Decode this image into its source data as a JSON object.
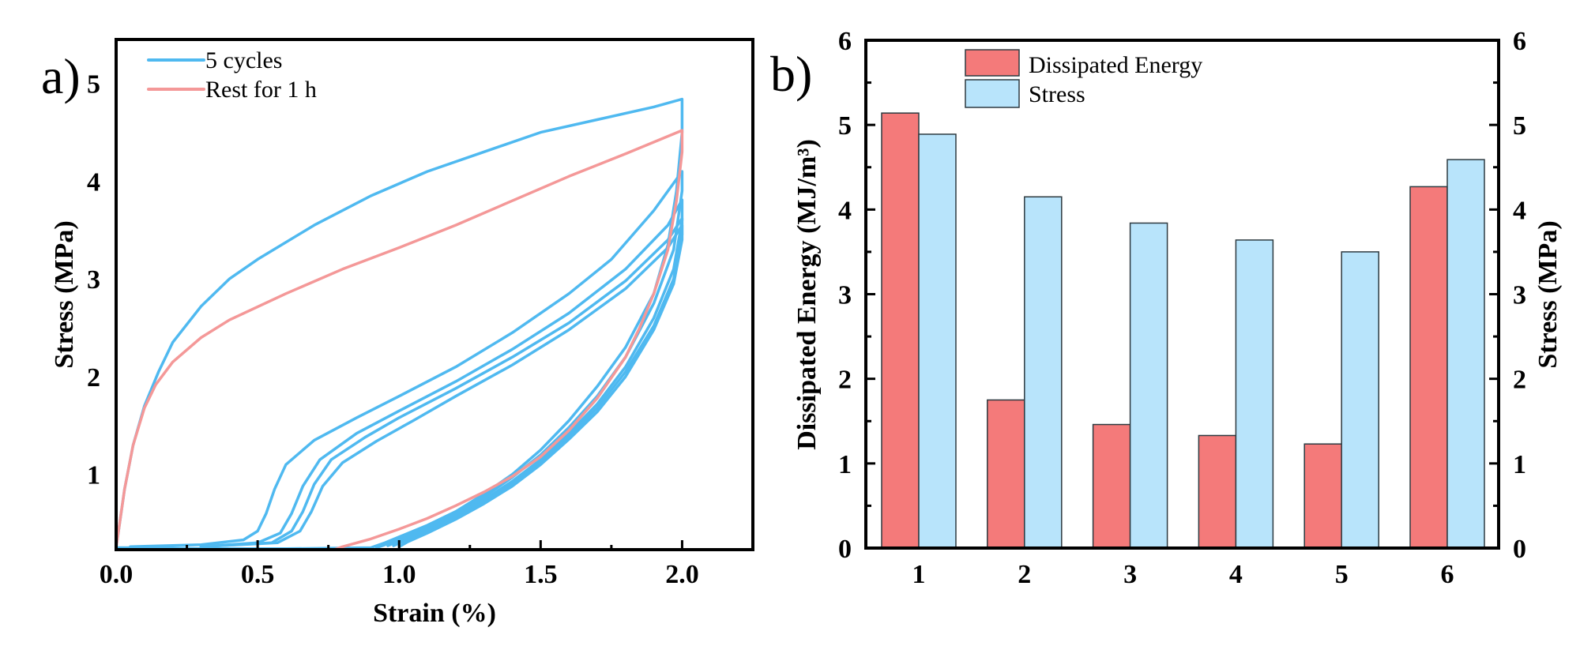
{
  "panels": {
    "a": {
      "label": "a)"
    },
    "b": {
      "label": "b)"
    }
  },
  "colors": {
    "cycles_line": "#4fb9f0",
    "rest_line": "#f49898",
    "energy_bar": "#f47a7a",
    "stress_bar": "#b8e4fb",
    "bar_edge": "#2d3a40",
    "axis": "#000000"
  },
  "chart_data": [
    {
      "id": "a",
      "type": "line",
      "title": "",
      "xlabel": "Strain (%)",
      "ylabel": "Stress (MPa)",
      "xlim": [
        0,
        2.25
      ],
      "ylim": [
        0.23,
        5.45
      ],
      "xticks": [
        "0.0",
        "0.5",
        "1.0",
        "1.5",
        "2.0"
      ],
      "xtick_values": [
        0,
        0.5,
        1.0,
        1.5,
        2.0
      ],
      "xminor_values": [
        0.25,
        0.75,
        1.25,
        1.75
      ],
      "yticks": [
        "1",
        "2",
        "3",
        "4",
        "5"
      ],
      "ytick_values": [
        1,
        2,
        3,
        4,
        5
      ],
      "grid": false,
      "legend_position": "top-left",
      "legend": [
        "5 cycles",
        "Rest for 1 h"
      ],
      "series": [
        {
          "name": "5 cycles",
          "group": "cycles",
          "cycle": 1,
          "x": [
            0,
            0.03,
            0.06,
            0.1,
            0.15,
            0.2,
            0.3,
            0.4,
            0.5,
            0.7,
            0.9,
            1.1,
            1.3,
            1.5,
            1.7,
            1.9,
            2.0,
            2.0,
            1.98,
            1.95,
            1.9,
            1.8,
            1.7,
            1.6,
            1.5,
            1.4,
            1.3,
            1.2,
            1.1,
            1.0,
            0.95,
            0.9,
            0.6,
            0.3,
            0.05,
            0
          ],
          "y": [
            0.25,
            0.85,
            1.3,
            1.7,
            2.05,
            2.35,
            2.72,
            3.0,
            3.2,
            3.55,
            3.85,
            4.1,
            4.3,
            4.5,
            4.63,
            4.76,
            4.84,
            4.5,
            3.9,
            3.35,
            2.85,
            2.3,
            1.9,
            1.55,
            1.25,
            1.0,
            0.8,
            0.62,
            0.48,
            0.36,
            0.3,
            0.25,
            0.24,
            0.24,
            0.25,
            0.25
          ]
        },
        {
          "name": "5 cycles",
          "group": "cycles",
          "cycle": 2,
          "x": [
            0.05,
            0.3,
            0.45,
            0.5,
            0.53,
            0.56,
            0.6,
            0.7,
            0.85,
            1.0,
            1.2,
            1.4,
            1.6,
            1.75,
            1.9,
            2.0,
            2.0,
            1.97,
            1.9,
            1.8,
            1.7,
            1.6,
            1.5,
            1.4,
            1.3,
            1.2,
            1.1,
            1.0,
            0.95,
            0.92
          ],
          "y": [
            0.26,
            0.28,
            0.33,
            0.42,
            0.6,
            0.85,
            1.1,
            1.35,
            1.58,
            1.8,
            2.1,
            2.45,
            2.85,
            3.2,
            3.7,
            4.1,
            3.9,
            3.3,
            2.75,
            2.2,
            1.8,
            1.48,
            1.2,
            0.97,
            0.77,
            0.6,
            0.46,
            0.34,
            0.28,
            0.25
          ]
        },
        {
          "name": "5 cycles",
          "group": "cycles",
          "cycle": 3,
          "x": [
            0.3,
            0.5,
            0.58,
            0.62,
            0.66,
            0.72,
            0.85,
            1.0,
            1.2,
            1.4,
            1.6,
            1.8,
            1.95,
            2.0,
            2.0,
            1.97,
            1.9,
            1.8,
            1.7,
            1.6,
            1.5,
            1.4,
            1.3,
            1.2,
            1.1,
            1.0,
            0.96
          ],
          "y": [
            0.26,
            0.3,
            0.4,
            0.6,
            0.88,
            1.15,
            1.42,
            1.65,
            1.95,
            2.28,
            2.65,
            3.1,
            3.55,
            3.81,
            3.6,
            3.1,
            2.6,
            2.1,
            1.72,
            1.42,
            1.15,
            0.93,
            0.74,
            0.58,
            0.44,
            0.32,
            0.27
          ]
        },
        {
          "name": "5 cycles",
          "group": "cycles",
          "cycle": 4,
          "x": [
            0.3,
            0.55,
            0.62,
            0.66,
            0.7,
            0.76,
            0.88,
            1.0,
            1.2,
            1.4,
            1.6,
            1.8,
            1.95,
            2.0,
            2.0,
            1.97,
            1.9,
            1.8,
            1.7,
            1.6,
            1.5,
            1.4,
            1.3,
            1.2,
            1.1,
            1.02,
            0.98
          ],
          "y": [
            0.26,
            0.3,
            0.42,
            0.62,
            0.9,
            1.15,
            1.38,
            1.58,
            1.88,
            2.2,
            2.55,
            2.98,
            3.4,
            3.62,
            3.45,
            3.0,
            2.52,
            2.05,
            1.68,
            1.39,
            1.12,
            0.9,
            0.72,
            0.56,
            0.42,
            0.32,
            0.27
          ]
        },
        {
          "name": "5 cycles",
          "group": "cycles",
          "cycle": 5,
          "x": [
            0.3,
            0.57,
            0.65,
            0.69,
            0.73,
            0.8,
            0.92,
            1.05,
            1.2,
            1.4,
            1.6,
            1.8,
            1.95,
            2.0,
            2.0,
            1.97,
            1.9,
            1.8,
            1.7,
            1.6,
            1.5,
            1.4,
            1.3,
            1.2,
            1.1,
            1.03,
            1.0
          ],
          "y": [
            0.26,
            0.3,
            0.42,
            0.62,
            0.88,
            1.12,
            1.34,
            1.55,
            1.8,
            2.12,
            2.48,
            2.9,
            3.32,
            3.55,
            3.4,
            2.95,
            2.48,
            2.0,
            1.64,
            1.36,
            1.1,
            0.88,
            0.7,
            0.54,
            0.4,
            0.31,
            0.26
          ]
        },
        {
          "name": "Rest for 1 h",
          "group": "rest",
          "x": [
            0,
            0.03,
            0.06,
            0.1,
            0.14,
            0.2,
            0.3,
            0.4,
            0.6,
            0.8,
            1.0,
            1.2,
            1.4,
            1.6,
            1.8,
            2.0,
            2.0,
            1.98,
            1.95,
            1.9,
            1.85,
            1.8,
            1.7,
            1.6,
            1.5,
            1.4,
            1.3,
            1.2,
            1.1,
            1.0,
            0.9,
            0.8,
            0.77
          ],
          "y": [
            0.25,
            0.85,
            1.3,
            1.68,
            1.92,
            2.15,
            2.4,
            2.58,
            2.85,
            3.1,
            3.32,
            3.55,
            3.8,
            4.05,
            4.28,
            4.52,
            4.3,
            3.8,
            3.3,
            2.85,
            2.5,
            2.2,
            1.78,
            1.45,
            1.18,
            0.98,
            0.82,
            0.68,
            0.55,
            0.44,
            0.34,
            0.26,
            0.23
          ]
        }
      ]
    },
    {
      "id": "b",
      "type": "bar",
      "title": "",
      "xlabel": "",
      "ylabel": "Dissipated Energy (MJ/m³)",
      "ylabel_right": "Stress (MPa)",
      "categories": [
        "1",
        "2",
        "3",
        "4",
        "5",
        "6"
      ],
      "ylim": [
        0,
        6
      ],
      "ylim_right": [
        0,
        6
      ],
      "yticks": [
        "0",
        "1",
        "2",
        "3",
        "4",
        "5",
        "6"
      ],
      "ytick_values": [
        0,
        1,
        2,
        3,
        4,
        5,
        6
      ],
      "grid": false,
      "legend_position": "top-left",
      "legend": [
        "Dissipated Energy",
        "Stress"
      ],
      "series": [
        {
          "name": "Dissipated Energy",
          "axis": "left",
          "values": [
            5.14,
            1.75,
            1.46,
            1.33,
            1.23,
            4.27
          ]
        },
        {
          "name": "Stress",
          "axis": "right",
          "values": [
            4.89,
            4.15,
            3.84,
            3.64,
            3.5,
            4.59
          ]
        }
      ]
    }
  ]
}
